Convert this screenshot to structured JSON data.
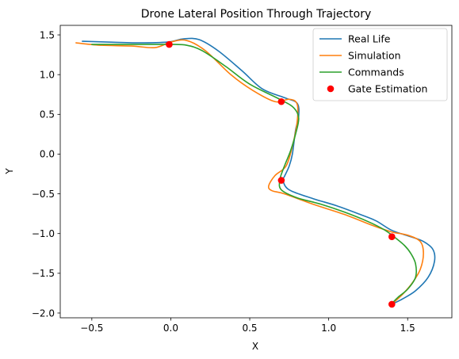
{
  "chart_data": {
    "type": "line",
    "title": "Drone Lateral Position Through Trajectory",
    "xlabel": "X",
    "ylabel": "Y",
    "xlim": [
      -0.7,
      1.78
    ],
    "ylim": [
      -2.06,
      1.62
    ],
    "xticks": [
      -0.5,
      0.0,
      0.5,
      1.0,
      1.5
    ],
    "xtick_labels": [
      "−0.5",
      "0.0",
      "0.5",
      "1.0",
      "1.5"
    ],
    "yticks": [
      -2.0,
      -1.5,
      -1.0,
      -0.5,
      0.0,
      0.5,
      1.0,
      1.5
    ],
    "ytick_labels": [
      "−2.0",
      "−1.5",
      "−1.0",
      "−0.5",
      "0.0",
      "0.5",
      "1.0",
      "1.5"
    ],
    "grid": false,
    "legend_position": "top-right",
    "series": [
      {
        "name": "Real Life",
        "color": "#1f77b4",
        "points": [
          [
            -0.56,
            1.42
          ],
          [
            -0.4,
            1.41
          ],
          [
            -0.2,
            1.4
          ],
          [
            -0.02,
            1.41
          ],
          [
            0.08,
            1.45
          ],
          [
            0.18,
            1.44
          ],
          [
            0.3,
            1.3
          ],
          [
            0.45,
            1.05
          ],
          [
            0.58,
            0.82
          ],
          [
            0.72,
            0.71
          ],
          [
            0.8,
            0.64
          ],
          [
            0.81,
            0.48
          ],
          [
            0.79,
            0.3
          ],
          [
            0.77,
            0.0
          ],
          [
            0.75,
            -0.15
          ],
          [
            0.72,
            -0.28
          ],
          [
            0.71,
            -0.33
          ],
          [
            0.75,
            -0.45
          ],
          [
            0.9,
            -0.56
          ],
          [
            1.05,
            -0.65
          ],
          [
            1.2,
            -0.76
          ],
          [
            1.3,
            -0.84
          ],
          [
            1.4,
            -0.96
          ],
          [
            1.52,
            -1.04
          ],
          [
            1.6,
            -1.1
          ],
          [
            1.66,
            -1.2
          ],
          [
            1.67,
            -1.35
          ],
          [
            1.63,
            -1.55
          ],
          [
            1.55,
            -1.72
          ],
          [
            1.47,
            -1.82
          ],
          [
            1.41,
            -1.88
          ]
        ]
      },
      {
        "name": "Simulation",
        "color": "#ff7f0e",
        "points": [
          [
            -0.6,
            1.4
          ],
          [
            -0.45,
            1.37
          ],
          [
            -0.25,
            1.36
          ],
          [
            -0.1,
            1.34
          ],
          [
            0.0,
            1.41
          ],
          [
            0.1,
            1.43
          ],
          [
            0.22,
            1.3
          ],
          [
            0.38,
            1.0
          ],
          [
            0.52,
            0.8
          ],
          [
            0.66,
            0.66
          ],
          [
            0.75,
            0.69
          ],
          [
            0.8,
            0.63
          ],
          [
            0.8,
            0.4
          ],
          [
            0.77,
            0.1
          ],
          [
            0.73,
            -0.15
          ],
          [
            0.66,
            -0.27
          ],
          [
            0.62,
            -0.4
          ],
          [
            0.64,
            -0.46
          ],
          [
            0.72,
            -0.5
          ],
          [
            0.9,
            -0.63
          ],
          [
            1.1,
            -0.76
          ],
          [
            1.28,
            -0.9
          ],
          [
            1.4,
            -0.98
          ],
          [
            1.5,
            -1.02
          ],
          [
            1.58,
            -1.1
          ],
          [
            1.6,
            -1.25
          ],
          [
            1.58,
            -1.45
          ],
          [
            1.53,
            -1.62
          ],
          [
            1.47,
            -1.76
          ],
          [
            1.41,
            -1.87
          ]
        ]
      },
      {
        "name": "Commands",
        "color": "#2ca02c",
        "points": [
          [
            -0.5,
            1.38
          ],
          [
            -0.3,
            1.38
          ],
          [
            -0.1,
            1.38
          ],
          [
            0.0,
            1.38
          ],
          [
            0.1,
            1.37
          ],
          [
            0.2,
            1.3
          ],
          [
            0.35,
            1.1
          ],
          [
            0.5,
            0.88
          ],
          [
            0.7,
            0.68
          ],
          [
            0.78,
            0.58
          ],
          [
            0.81,
            0.45
          ],
          [
            0.79,
            0.25
          ],
          [
            0.76,
            0.05
          ],
          [
            0.73,
            -0.1
          ],
          [
            0.71,
            -0.2
          ],
          [
            0.69,
            -0.33
          ],
          [
            0.7,
            -0.45
          ],
          [
            0.8,
            -0.55
          ],
          [
            0.95,
            -0.63
          ],
          [
            1.1,
            -0.73
          ],
          [
            1.25,
            -0.85
          ],
          [
            1.35,
            -0.95
          ],
          [
            1.42,
            -1.05
          ],
          [
            1.48,
            -1.15
          ],
          [
            1.52,
            -1.25
          ],
          [
            1.55,
            -1.38
          ],
          [
            1.55,
            -1.55
          ],
          [
            1.5,
            -1.7
          ],
          [
            1.44,
            -1.8
          ],
          [
            1.4,
            -1.88
          ]
        ]
      }
    ],
    "scatter": {
      "name": "Gate Estimation",
      "color": "#ff0000",
      "points": [
        [
          -0.01,
          1.38
        ],
        [
          0.7,
          0.66
        ],
        [
          0.7,
          -0.33
        ],
        [
          1.4,
          -1.04
        ],
        [
          1.4,
          -1.89
        ]
      ]
    }
  }
}
